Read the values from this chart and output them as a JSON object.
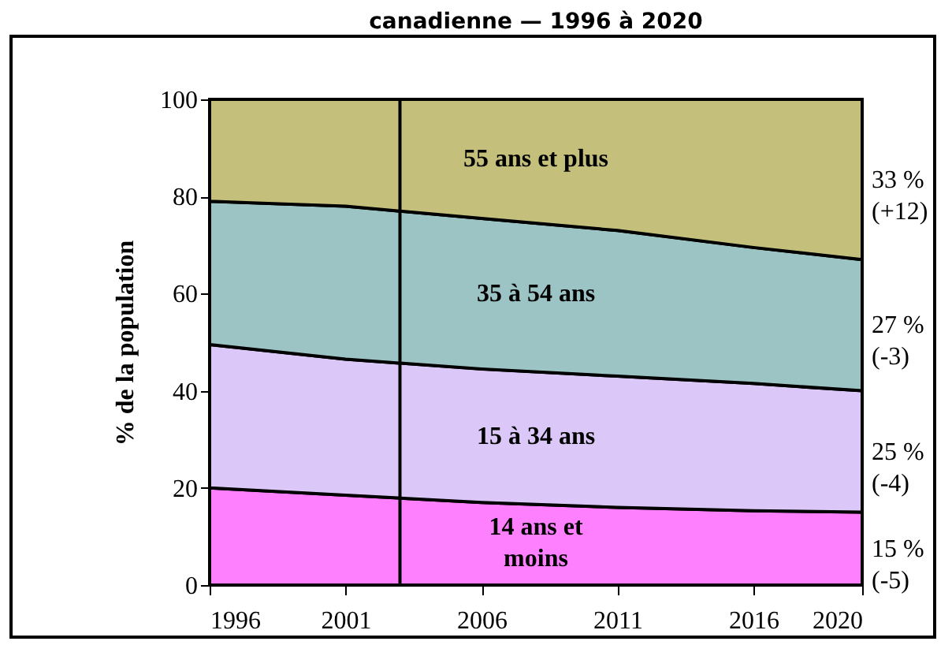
{
  "chart_data": {
    "type": "area",
    "title": "canadienne — 1996 à 2020",
    "ylabel": "% de la population",
    "x": [
      1996,
      2001,
      2006,
      2011,
      2016,
      2020
    ],
    "xlim": [
      1996,
      2020
    ],
    "xticks": [
      1996,
      2001,
      2006,
      2011,
      2016,
      2020
    ],
    "ylim": [
      0,
      100
    ],
    "yticks": [
      0,
      20,
      40,
      60,
      80,
      100
    ],
    "stacked": true,
    "grid": false,
    "legend": false,
    "series": [
      {
        "name": "14 ans et moins",
        "color": "#ff80ff",
        "values": [
          20,
          18.5,
          17,
          16,
          15.3,
          15
        ]
      },
      {
        "name": "15 à 34 ans",
        "color": "#dcc8f8",
        "values": [
          29.5,
          28,
          27.5,
          27,
          26.2,
          25
        ]
      },
      {
        "name": "35 à 54 ans",
        "color": "#9cc4c4",
        "values": [
          29.5,
          31.5,
          31,
          30,
          28,
          27
        ]
      },
      {
        "name": "55 ans et plus",
        "color": "#c4c07c",
        "values": [
          21,
          22,
          24.5,
          27,
          30.5,
          33
        ]
      }
    ],
    "ref_lines": [
      {
        "axis": "x",
        "value": 2003
      }
    ],
    "annotations": [
      "33 %\n(+12)",
      "27 %\n(-3)",
      "25 %\n(-4)",
      "15 %\n(-5)"
    ]
  }
}
